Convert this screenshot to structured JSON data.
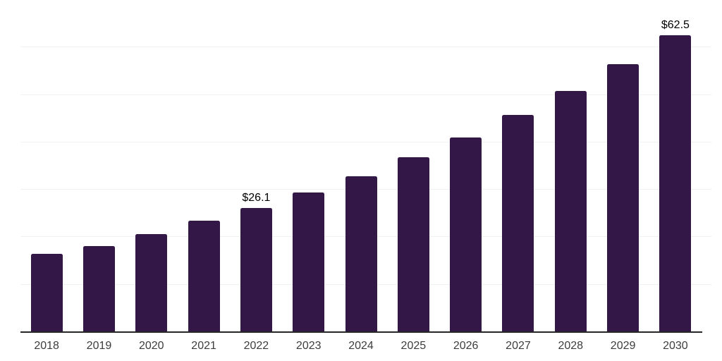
{
  "page": {
    "background_color": "#ffffff"
  },
  "chart_data": {
    "type": "bar",
    "title": "",
    "xlabel": "",
    "ylabel": "",
    "categories": [
      "2018",
      "2019",
      "2020",
      "2021",
      "2022",
      "2023",
      "2024",
      "2025",
      "2026",
      "2027",
      "2028",
      "2029",
      "2030"
    ],
    "values": [
      16.5,
      18.2,
      20.6,
      23.5,
      26.1,
      29.4,
      32.9,
      36.9,
      41.0,
      45.8,
      50.8,
      56.5,
      62.5
    ],
    "labeled_points": [
      {
        "category": "2022",
        "label": "$26.1"
      },
      {
        "category": "2030",
        "label": "$62.5"
      }
    ],
    "ylim": [
      0,
      70
    ],
    "y_axis_ticks_visible": false,
    "legend": "none",
    "grid": "horizontal",
    "gridline_interval": 10,
    "colors": {
      "bar": "#321747",
      "gridline": "#f1f1f3",
      "axis_line": "#262626",
      "tick_label": "#3d3d3d",
      "value_label": "#000000"
    }
  }
}
